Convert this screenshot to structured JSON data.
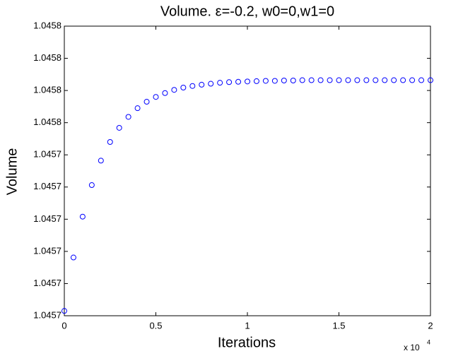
{
  "chart_data": {
    "type": "scatter",
    "title": "Volume.   ε=-0.2, w0=0,w1=0",
    "x_label": "Iterations",
    "y_label": "Volume",
    "x_multiplier": "x 10",
    "x_multiplier_exponent": "4",
    "color": "#0000ff",
    "grid": false,
    "x": [
      0,
      500,
      1000,
      1500,
      2000,
      2500,
      3000,
      3500,
      4000,
      4500,
      5000,
      5500,
      6000,
      6500,
      7000,
      7500,
      8000,
      8500,
      9000,
      9500,
      10000,
      10500,
      11000,
      11500,
      12000,
      12500,
      13000,
      13500,
      14000,
      14500,
      15000,
      15500,
      16000,
      16500,
      17000,
      17500,
      18000,
      18500,
      19000,
      19500,
      20000
    ],
    "values": [
      1.0456915,
      1.0457081,
      1.0457208,
      1.0457306,
      1.0457382,
      1.045744,
      1.0457484,
      1.0457518,
      1.0457545,
      1.0457565,
      1.045758,
      1.0457592,
      1.0457602,
      1.0457609,
      1.0457614,
      1.0457618,
      1.0457621,
      1.0457624,
      1.0457626,
      1.0457627,
      1.0457628,
      1.0457629,
      1.045763,
      1.045763,
      1.0457631,
      1.0457631,
      1.0457632,
      1.0457632,
      1.0457632,
      1.0457632,
      1.0457632,
      1.0457632,
      1.0457632,
      1.0457632,
      1.0457632,
      1.0457632,
      1.0457632,
      1.0457632,
      1.0457632,
      1.0457632,
      1.0457632
    ],
    "xlim": [
      0,
      20000
    ],
    "xticks": [
      0,
      {
        "value": 5000,
        "label": "0.5"
      },
      {
        "value": 10000,
        "label": "1"
      },
      {
        "value": 15000,
        "label": "1.5"
      },
      {
        "value": 20000,
        "label": "2"
      }
    ],
    "ylim": [
      1.04569,
      1.04578
    ],
    "yticks": [
      {
        "value": 1.04569,
        "label": "1.0457"
      },
      {
        "value": 1.0457,
        "label": "1.0457"
      },
      {
        "value": 1.04571,
        "label": "1.0457"
      },
      {
        "value": 1.04572,
        "label": "1.0457"
      },
      {
        "value": 1.04573,
        "label": "1.0457"
      },
      {
        "value": 1.04574,
        "label": "1.0457"
      },
      {
        "value": 1.04575,
        "label": "1.0458"
      },
      {
        "value": 1.04576,
        "label": "1.0458"
      },
      {
        "value": 1.04577,
        "label": "1.0458"
      },
      {
        "value": 1.04578,
        "label": "1.0458"
      }
    ]
  }
}
